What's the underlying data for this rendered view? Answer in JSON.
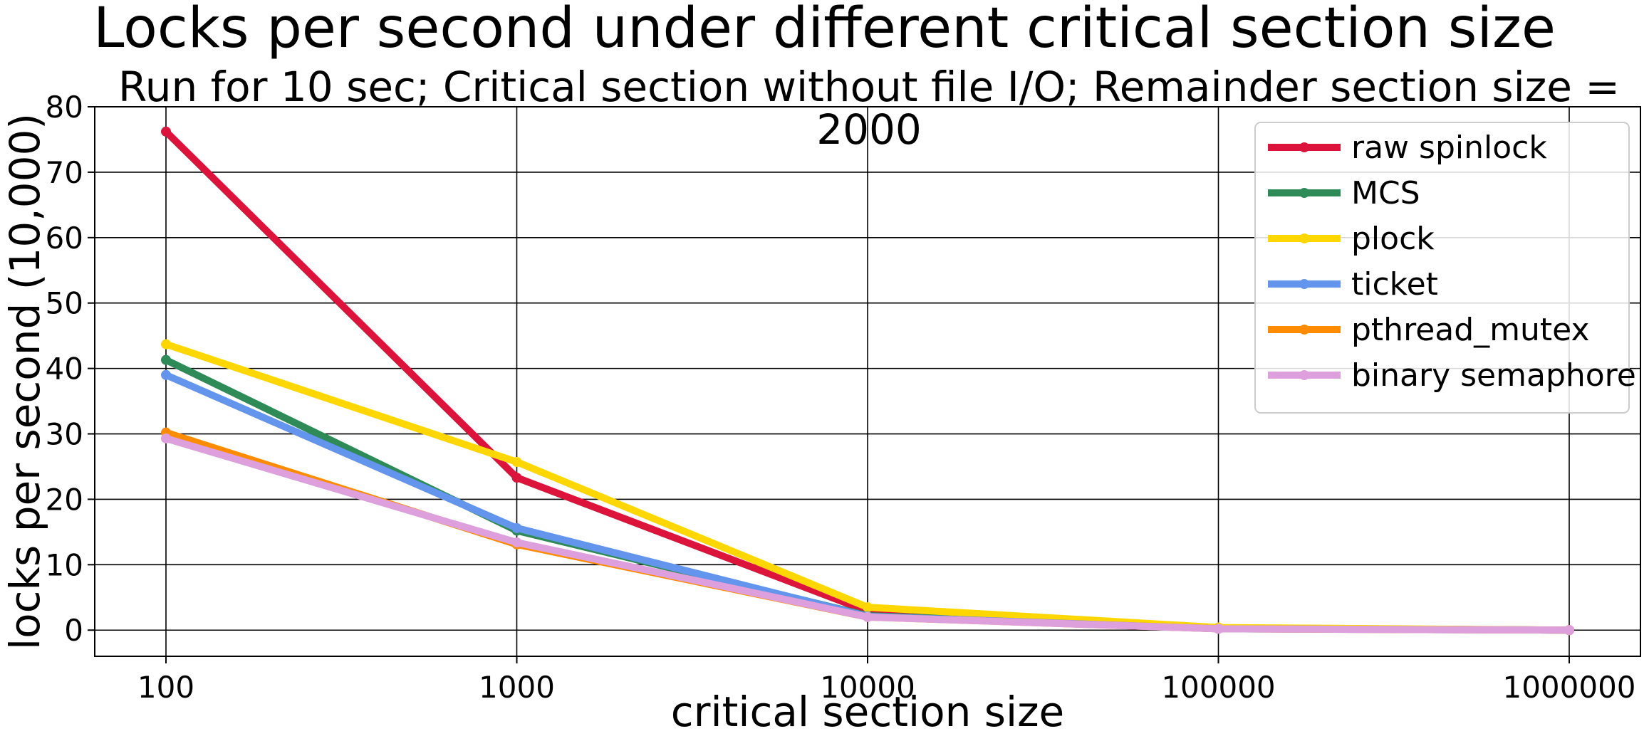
{
  "chart_data": {
    "type": "line",
    "title": "Locks per second under different critical section size",
    "subtitle": "Run for 10 sec; Critical section without file I/O; Remainder section size = 2000",
    "xlabel": "critical section size",
    "ylabel": "locks per second (10,000)",
    "x_scale": "log",
    "categories": [
      "100",
      "1000",
      "10000",
      "100000",
      "1000000"
    ],
    "x": [
      100,
      1000,
      10000,
      100000,
      1000000
    ],
    "ylim": [
      -4,
      80
    ],
    "y_ticks": [
      0,
      10,
      20,
      30,
      40,
      50,
      60,
      70,
      80
    ],
    "grid": true,
    "legend_position": "top-right",
    "series": [
      {
        "name": "raw spinlock",
        "color": "#dc143c",
        "values": [
          76.2,
          23.3,
          2.9,
          0.3,
          0.0
        ]
      },
      {
        "name": "MCS",
        "color": "#2e8b57",
        "values": [
          41.3,
          15.2,
          2.2,
          0.3,
          0.0
        ]
      },
      {
        "name": "plock",
        "color": "#ffd700",
        "values": [
          43.7,
          25.7,
          3.5,
          0.4,
          0.0
        ]
      },
      {
        "name": "ticket",
        "color": "#6495ed",
        "values": [
          39.0,
          15.6,
          2.1,
          0.2,
          0.0
        ]
      },
      {
        "name": "pthread_mutex",
        "color": "#ff8c00",
        "values": [
          30.2,
          13.1,
          2.0,
          0.2,
          0.0
        ]
      },
      {
        "name": "binary semaphore",
        "color": "#dda0dd",
        "values": [
          29.3,
          13.4,
          2.0,
          0.2,
          0.0
        ]
      }
    ]
  }
}
